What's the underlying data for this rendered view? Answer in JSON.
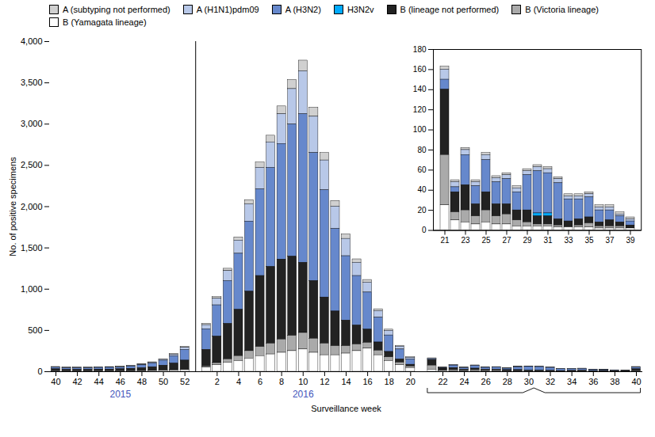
{
  "chart_data": [
    {
      "type": "bar",
      "stacked": true,
      "legend": "top",
      "xlabel": "Surveillance week",
      "ylabel": "No. of positive specimens",
      "ylim": [
        0,
        4000
      ],
      "yticks": [
        0,
        500,
        {
          "value": 1000,
          "label": "1,000"
        },
        {
          "value": 1500,
          "label": "1,500"
        },
        {
          "value": 2000,
          "label": "2,000"
        },
        {
          "value": 2500,
          "label": "2,500"
        },
        {
          "value": 3000,
          "label": "3,000"
        },
        {
          "value": 3500,
          "label": "3,500"
        },
        {
          "value": 4000,
          "label": "4,000"
        }
      ],
      "categories": [
        "40",
        null,
        "42",
        null,
        "44",
        null,
        "46",
        null,
        "48",
        null,
        "50",
        null,
        "52",
        null,
        null,
        "2",
        null,
        "4",
        null,
        "6",
        null,
        "8",
        null,
        "10",
        null,
        "12",
        null,
        "14",
        null,
        "16",
        null,
        "18",
        null,
        "20",
        null,
        null,
        "22",
        null,
        "24",
        null,
        "26",
        null,
        "28",
        null,
        "30",
        null,
        "32",
        null,
        "34",
        null,
        "36",
        null,
        "38",
        null,
        "40"
      ],
      "annotations": [
        {
          "text": "2015",
          "x": "46",
          "color": "#4455bb"
        },
        {
          "text": "2016",
          "x": "10",
          "color": "#4455bb"
        }
      ],
      "series": [
        {
          "name": "A (subtyping not performed)",
          "color": "#d0d0d0",
          "values": [
            3,
            3,
            3,
            3,
            3,
            3,
            3,
            4,
            4,
            5,
            5,
            8,
            10,
            null,
            15,
            20,
            28,
            38,
            50,
            65,
            80,
            95,
            110,
            130,
            110,
            90,
            70,
            55,
            42,
            32,
            22,
            15,
            10,
            6,
            null,
            3,
            2,
            2,
            2,
            2,
            2,
            2,
            2,
            2,
            2,
            2,
            2,
            2,
            2,
            2,
            2,
            2,
            2,
            2,
            3
          ]
        },
        {
          "name": "A (H1N1)pdm09",
          "color": "#b8c8e8",
          "values": [
            5,
            5,
            5,
            5,
            5,
            5,
            5,
            6,
            8,
            10,
            12,
            18,
            25,
            null,
            50,
            80,
            120,
            160,
            210,
            260,
            310,
            360,
            430,
            520,
            440,
            360,
            270,
            210,
            160,
            120,
            80,
            55,
            35,
            20,
            null,
            10,
            5,
            5,
            4,
            5,
            4,
            4,
            4,
            4,
            4,
            4,
            4,
            3,
            3,
            3,
            3,
            3,
            2,
            2,
            5
          ]
        },
        {
          "name": "A (H3N2)",
          "color": "#6688cc",
          "values": [
            20,
            18,
            18,
            18,
            20,
            22,
            22,
            28,
            35,
            45,
            60,
            90,
            130,
            null,
            250,
            380,
            520,
            680,
            850,
            1050,
            1200,
            1400,
            1600,
            1800,
            1550,
            1300,
            1000,
            780,
            600,
            450,
            300,
            200,
            120,
            65,
            null,
            10,
            5,
            30,
            18,
            32,
            22,
            25,
            18,
            35,
            42,
            40,
            36,
            22,
            20,
            20,
            12,
            10,
            6,
            4,
            20
          ]
        },
        {
          "name": "H3N2v",
          "color": "#00aaff",
          "values": [
            0,
            0,
            0,
            0,
            0,
            0,
            0,
            0,
            0,
            0,
            0,
            0,
            0,
            null,
            0,
            0,
            0,
            0,
            0,
            0,
            0,
            0,
            0,
            0,
            0,
            0,
            0,
            0,
            0,
            0,
            0,
            0,
            0,
            0,
            null,
            0,
            0,
            0,
            0,
            0,
            0,
            0,
            0,
            0,
            3,
            3,
            0,
            0,
            0,
            0,
            0,
            0,
            0,
            0,
            0
          ]
        },
        {
          "name": "B (lineage not performed)",
          "color": "#222222",
          "values": [
            25,
            20,
            20,
            20,
            22,
            22,
            25,
            30,
            35,
            45,
            60,
            80,
            110,
            null,
            200,
            320,
            430,
            560,
            720,
            860,
            930,
            970,
            960,
            850,
            700,
            560,
            420,
            310,
            230,
            160,
            100,
            65,
            40,
            22,
            null,
            65,
            20,
            25,
            12,
            18,
            12,
            10,
            10,
            12,
            8,
            8,
            6,
            6,
            6,
            6,
            4,
            6,
            4,
            3,
            25
          ]
        },
        {
          "name": "B (Victoria lineage)",
          "color": "#aaaaaa",
          "values": [
            0,
            0,
            0,
            0,
            0,
            0,
            0,
            0,
            0,
            0,
            2,
            3,
            5,
            null,
            15,
            25,
            40,
            60,
            90,
            110,
            130,
            160,
            185,
            200,
            170,
            140,
            110,
            90,
            80,
            70,
            55,
            45,
            30,
            18,
            null,
            50,
            8,
            12,
            8,
            12,
            8,
            10,
            6,
            4,
            2,
            2,
            2,
            0,
            2,
            4,
            2,
            2,
            2,
            0,
            0
          ]
        },
        {
          "name": "B (Yamagata lineage)",
          "color": "#ffffff",
          "values": [
            5,
            4,
            4,
            4,
            5,
            5,
            5,
            6,
            8,
            10,
            12,
            15,
            20,
            null,
            50,
            80,
            110,
            130,
            160,
            190,
            210,
            230,
            250,
            270,
            230,
            200,
            200,
            220,
            250,
            280,
            200,
            130,
            80,
            45,
            null,
            25,
            10,
            8,
            6,
            8,
            6,
            6,
            4,
            4,
            4,
            4,
            3,
            3,
            3,
            3,
            2,
            2,
            2,
            2,
            5
          ]
        }
      ]
    },
    {
      "type": "bar",
      "stacked": true,
      "ylim": [
        0,
        180
      ],
      "yticks": [
        0,
        20,
        40,
        60,
        80,
        100,
        120,
        140,
        160,
        180
      ],
      "categories": [
        "21",
        null,
        "23",
        null,
        "25",
        null,
        "27",
        null,
        "29",
        null,
        "31",
        null,
        "33",
        null,
        "35",
        null,
        "37",
        null,
        "39"
      ],
      "series": [
        {
          "name": "A (subtyping not performed)",
          "color": "#d0d0d0",
          "values": [
            3,
            2,
            2,
            2,
            2,
            2,
            2,
            2,
            2,
            2,
            2,
            2,
            2,
            2,
            2,
            2,
            2,
            2,
            2
          ]
        },
        {
          "name": "A (H1N1)pdm09",
          "color": "#b8c8e8",
          "values": [
            10,
            5,
            5,
            4,
            5,
            4,
            4,
            4,
            4,
            4,
            4,
            4,
            3,
            3,
            3,
            3,
            3,
            2,
            2
          ]
        },
        {
          "name": "A (H3N2)",
          "color": "#6688cc",
          "values": [
            10,
            5,
            30,
            18,
            32,
            22,
            25,
            18,
            35,
            42,
            40,
            36,
            22,
            20,
            20,
            12,
            10,
            6,
            4
          ]
        },
        {
          "name": "H3N2v",
          "color": "#00aaff",
          "values": [
            0,
            0,
            0,
            0,
            0,
            0,
            0,
            0,
            0,
            3,
            3,
            0,
            0,
            0,
            0,
            0,
            0,
            0,
            0
          ]
        },
        {
          "name": "B (lineage not performed)",
          "color": "#222222",
          "values": [
            65,
            20,
            25,
            12,
            18,
            12,
            10,
            10,
            12,
            8,
            8,
            6,
            6,
            6,
            6,
            4,
            6,
            4,
            3
          ]
        },
        {
          "name": "B (Victoria lineage)",
          "color": "#aaaaaa",
          "values": [
            50,
            8,
            12,
            8,
            12,
            8,
            10,
            6,
            4,
            2,
            2,
            2,
            0,
            2,
            4,
            2,
            2,
            2,
            0
          ]
        },
        {
          "name": "B (Yamagata lineage)",
          "color": "#ffffff",
          "values": [
            25,
            10,
            8,
            6,
            8,
            6,
            6,
            4,
            4,
            4,
            4,
            3,
            3,
            3,
            3,
            2,
            2,
            2,
            2
          ]
        }
      ]
    }
  ]
}
